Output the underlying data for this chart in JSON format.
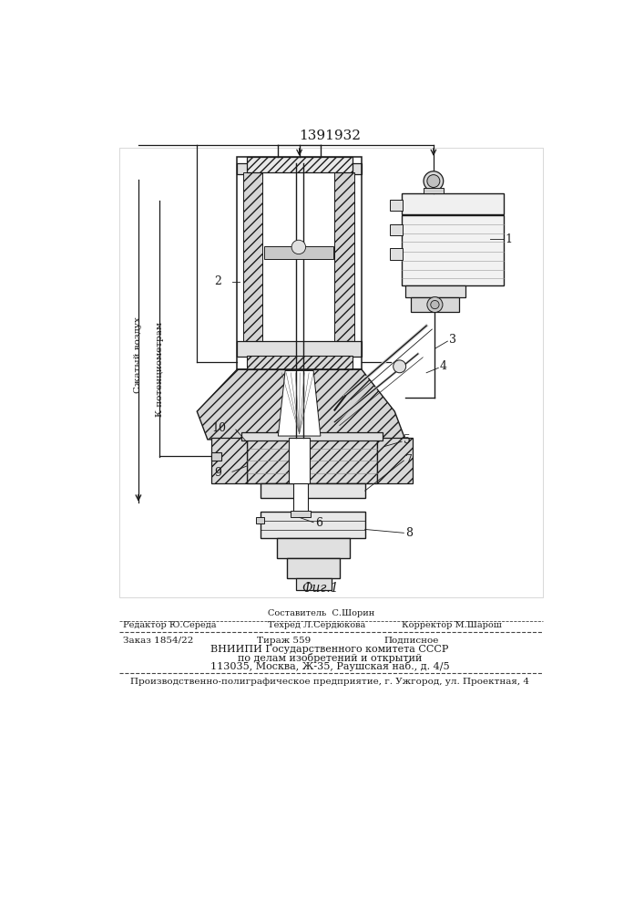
{
  "patent_number": "1391932",
  "fig_label": "Фиг.1",
  "label_left1": "Сжатый воздух",
  "label_left2": "К потенциометрам",
  "footer": {
    "line1_left": "Редактор Ю.Середа",
    "line1_center_top": "Составитель  С.Шорин",
    "line1_center": "Техред Л.Сердюкова",
    "line1_right": "Корректор М.Шарош",
    "line2_left": "Заказ 1854/22",
    "line2_center": "Тираж 559",
    "line2_right": "Подписное",
    "line3": "ВНИИПИ Государственного комитета СССР",
    "line4": "по делам изобретений и открытий",
    "line5": "113035, Москва, Ж-35, Раушская наб., д. 4/5",
    "line6": "Производственно-полиграфическое предприятие, г. Ужгород, ул. Проектная, 4"
  },
  "bg_color": "#ffffff",
  "line_color": "#1a1a1a"
}
